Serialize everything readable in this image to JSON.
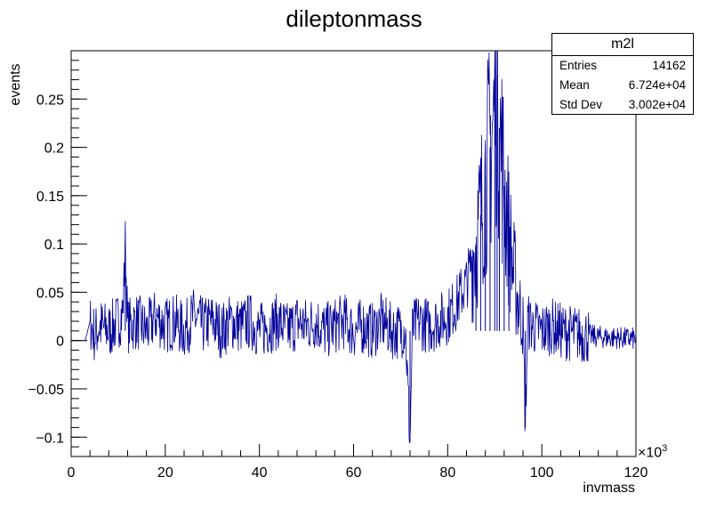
{
  "chart_data": {
    "type": "line",
    "title": "dileptonmass",
    "xlabel": "invmass",
    "ylabel": "events",
    "x_multiplier_label": "×10",
    "x_multiplier_exp": "3",
    "xlim": [
      0,
      120
    ],
    "ylim": [
      -0.12,
      0.3
    ],
    "xticks": [
      0,
      20,
      40,
      60,
      80,
      100,
      120
    ],
    "yticks": [
      -0.1,
      -0.05,
      0,
      0.05,
      0.1,
      0.15,
      0.2,
      0.25
    ],
    "ytick_labels": [
      "−0.1",
      "−0.05",
      "0",
      "0.05",
      "0.1",
      "0.15",
      "0.2",
      "0.25"
    ],
    "line_color": "#000099",
    "series": [
      {
        "x": [
          0,
          3,
          4,
          5,
          6,
          8,
          10,
          11,
          11.5,
          12,
          14,
          16,
          18,
          20,
          22,
          24,
          26,
          28,
          30,
          32,
          34,
          36,
          38,
          40,
          42,
          44,
          46,
          48,
          50,
          52,
          54,
          56,
          58,
          60,
          62,
          64,
          66,
          68,
          70,
          71,
          72,
          72.5,
          73,
          74,
          76,
          78,
          80,
          82,
          84,
          86,
          87,
          88,
          89,
          90,
          90.5,
          91,
          92,
          93,
          94,
          95,
          96,
          96.5,
          97,
          98,
          100,
          102,
          104,
          106,
          108,
          110,
          112,
          114,
          116,
          118,
          120
        ],
        "y": [
          0.0,
          0.0,
          0.02,
          0.005,
          0.015,
          0.01,
          0.02,
          0.03,
          0.1,
          0.015,
          0.02,
          0.01,
          0.025,
          0.015,
          0.02,
          0.01,
          0.025,
          0.015,
          0.02,
          0.01,
          0.02,
          0.015,
          0.02,
          0.01,
          0.015,
          0.02,
          0.01,
          0.02,
          0.015,
          0.02,
          0.01,
          0.015,
          0.02,
          0.01,
          0.015,
          0.01,
          0.02,
          0.01,
          0.01,
          0.015,
          -0.105,
          0.01,
          0.015,
          0.02,
          0.015,
          0.02,
          0.025,
          0.04,
          0.06,
          0.1,
          0.13,
          0.17,
          0.2,
          0.24,
          0.275,
          0.22,
          0.16,
          0.11,
          0.07,
          0.04,
          0.02,
          -0.09,
          0.02,
          0.015,
          0.01,
          0.015,
          0.01,
          0.008,
          0.006,
          0.005,
          0.004,
          0.003,
          0.003,
          0.002,
          0.002
        ]
      }
    ]
  },
  "stats_box": {
    "name": "m2l",
    "rows": [
      {
        "label": "Entries",
        "value": "14162"
      },
      {
        "label": "Mean",
        "value": "6.724e+04"
      },
      {
        "label": "Std Dev",
        "value": "3.002e+04"
      }
    ]
  }
}
